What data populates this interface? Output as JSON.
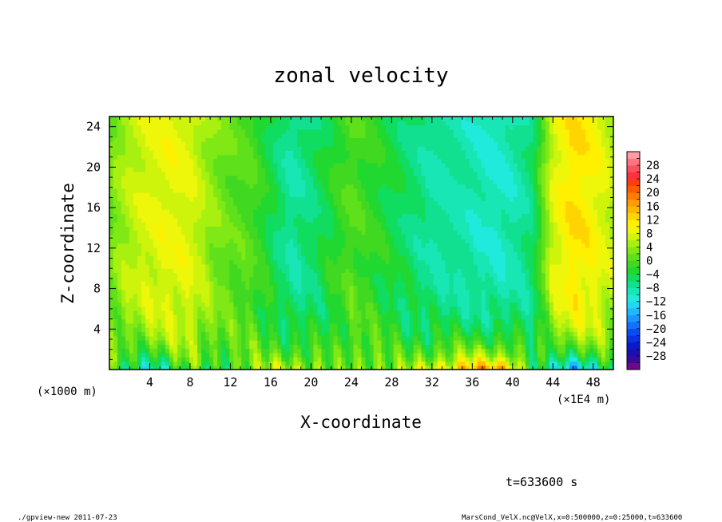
{
  "chart_data": {
    "type": "heatmap",
    "title": "zonal velocity",
    "xlabel": "X-coordinate",
    "ylabel": "Z-coordinate",
    "x_unit": "(×1000 m)",
    "x_unit_right": "(×1E4 m)",
    "xlim": [
      0,
      50
    ],
    "ylim": [
      0,
      25
    ],
    "x_ticks": [
      4,
      8,
      12,
      16,
      20,
      24,
      28,
      32,
      36,
      40,
      44,
      48
    ],
    "y_ticks": [
      4,
      8,
      12,
      16,
      20,
      24
    ],
    "colorbar": {
      "levels": [
        -32,
        -30,
        -28,
        -26,
        -24,
        -22,
        -20,
        -18,
        -16,
        -14,
        -12,
        -10,
        -8,
        -6,
        -4,
        -2,
        0,
        2,
        4,
        6,
        8,
        10,
        12,
        14,
        16,
        18,
        20,
        22,
        24,
        26,
        28,
        30,
        32
      ],
      "labels": [
        28,
        24,
        20,
        16,
        12,
        8,
        4,
        0,
        -4,
        -8,
        -12,
        -16,
        -20,
        -24,
        -28
      ],
      "colors": [
        "#6a0a8a",
        "#3a0a9a",
        "#1a10b0",
        "#0a1ac8",
        "#0a30e0",
        "#0a4cf0",
        "#1470ff",
        "#1c96ff",
        "#20b8ff",
        "#20d8f4",
        "#20eadc",
        "#18e6b4",
        "#10e090",
        "#10dc60",
        "#20d830",
        "#40d820",
        "#5ee01a",
        "#80e814",
        "#a8f010",
        "#cef40c",
        "#eef60a",
        "#fff000",
        "#ffd400",
        "#ffb800",
        "#ff9c00",
        "#ff7c00",
        "#ff5c00",
        "#ff3c10",
        "#ff3040",
        "#ff5060",
        "#ff7480",
        "#ff9ca4"
      ]
    },
    "field_profile": {
      "x": [
        0,
        2,
        4,
        6,
        8,
        10,
        12,
        14,
        16,
        18,
        20,
        22,
        24,
        26,
        28,
        30,
        32,
        34,
        36,
        38,
        40,
        42,
        44,
        46,
        48,
        50
      ],
      "upper_level_u": [
        2,
        6,
        8,
        9,
        8,
        4,
        1,
        0,
        -4,
        -8,
        -6,
        -3,
        0,
        -2,
        -4,
        -6,
        -8,
        -8,
        -9,
        -10,
        -9,
        -6,
        8,
        12,
        10,
        6
      ],
      "near_surface_u": [
        0,
        -8,
        -10,
        -6,
        0,
        -4,
        0,
        2,
        6,
        8,
        4,
        0,
        2,
        4,
        2,
        6,
        10,
        12,
        16,
        18,
        14,
        -4,
        -12,
        -16,
        -10,
        -6
      ]
    },
    "time": "t=633600 s"
  },
  "footer": {
    "left": "./gpview-new   2011-07-23",
    "right": "MarsCond_VelX.nc@VelX,x=0:500000,z=0:25000,t=633600"
  }
}
